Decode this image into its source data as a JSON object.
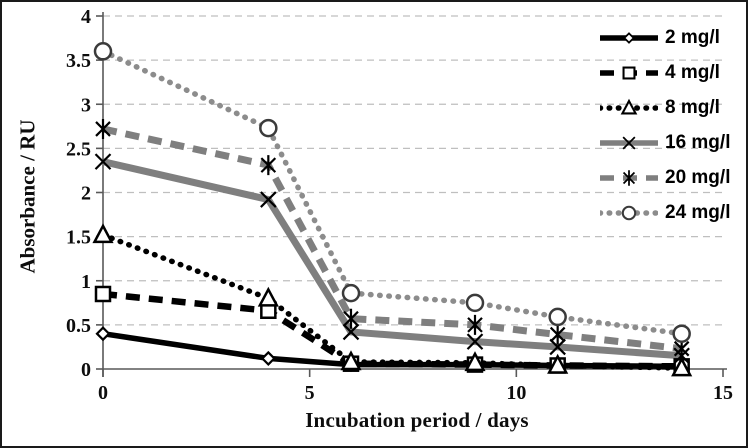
{
  "chart_data": {
    "type": "line",
    "title": "",
    "xlabel": "Incubation period / days",
    "ylabel": "Absorbance / RU",
    "x": [
      0,
      4,
      6,
      9,
      11,
      14
    ],
    "xlim": [
      0,
      15
    ],
    "ylim": [
      0,
      4
    ],
    "x_ticks": [
      0,
      5,
      10,
      15
    ],
    "y_ticks": [
      0,
      0.5,
      1,
      1.5,
      2,
      2.5,
      3,
      3.5,
      4
    ],
    "grid": "horizontal-dashed",
    "gridline_color": "#bfbfbf",
    "axis_color": "#595959",
    "tick_label_color": "#0d0d0d",
    "legend_position": "top-right",
    "series": [
      {
        "label": "2 mg/l",
        "color": "#000000",
        "dash": "solid",
        "marker": "diamond",
        "marker_color": "#000000",
        "values": [
          0.4,
          0.12,
          0.05,
          0.05,
          0.04,
          0.03
        ]
      },
      {
        "label": "4 mg/l",
        "color": "#000000",
        "dash": "dashed",
        "marker": "square",
        "marker_color": "#000000",
        "values": [
          0.85,
          0.66,
          0.06,
          0.05,
          0.04,
          0.03
        ]
      },
      {
        "label": "8 mg/l",
        "color": "#000000",
        "dash": "dotted",
        "marker": "triangle",
        "marker_color": "#000000",
        "values": [
          1.52,
          0.8,
          0.08,
          0.07,
          0.04,
          0.01
        ]
      },
      {
        "label": "16 mg/l",
        "color": "#7f7f7f",
        "dash": "solid",
        "marker": "x",
        "marker_color": "#000000",
        "values": [
          2.35,
          1.92,
          0.42,
          0.31,
          0.25,
          0.15
        ]
      },
      {
        "label": "20 mg/l",
        "color": "#7f7f7f",
        "dash": "dashed",
        "marker": "asterisk",
        "marker_color": "#000000",
        "values": [
          2.72,
          2.31,
          0.57,
          0.5,
          0.39,
          0.23
        ]
      },
      {
        "label": "24 mg/l",
        "color": "#8c8c8c",
        "dash": "dotted",
        "marker": "circle",
        "marker_color": "#3b3b3b",
        "values": [
          3.6,
          2.73,
          0.86,
          0.75,
          0.59,
          0.4
        ]
      }
    ]
  }
}
